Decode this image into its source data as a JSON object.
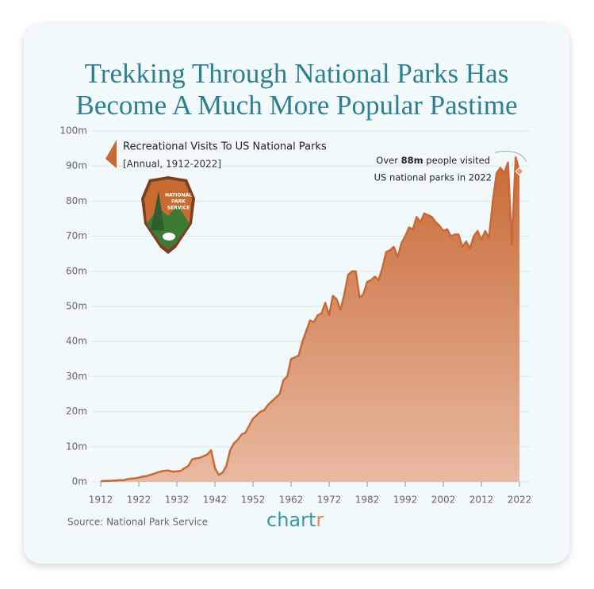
{
  "chart_data": {
    "type": "area",
    "title": [
      "Trekking Through National Parks Has",
      "Become A Much More Popular Pastime"
    ],
    "legend": {
      "name": "Recreational Visits To US National Parks",
      "note": "[Annual, 1912-2022]"
    },
    "badge": [
      "NATIONAL",
      "PARK",
      "SERVICE"
    ],
    "annotation": {
      "line1": [
        "Over",
        "88m",
        "people visited"
      ],
      "line2": "US national parks in 2022"
    },
    "source": "Source: National Park Service",
    "logo": [
      "chart",
      "r"
    ],
    "color": "#c86a35",
    "x": [
      1912,
      1913,
      1914,
      1915,
      1916,
      1917,
      1918,
      1919,
      1920,
      1921,
      1922,
      1923,
      1924,
      1925,
      1926,
      1927,
      1928,
      1929,
      1930,
      1931,
      1932,
      1933,
      1934,
      1935,
      1936,
      1937,
      1938,
      1939,
      1940,
      1941,
      1942,
      1943,
      1944,
      1945,
      1946,
      1947,
      1948,
      1949,
      1950,
      1951,
      1952,
      1953,
      1954,
      1955,
      1956,
      1957,
      1958,
      1959,
      1960,
      1961,
      1962,
      1963,
      1964,
      1965,
      1966,
      1967,
      1968,
      1969,
      1970,
      1971,
      1972,
      1973,
      1974,
      1975,
      1976,
      1977,
      1978,
      1979,
      1980,
      1981,
      1982,
      1983,
      1984,
      1985,
      1986,
      1987,
      1988,
      1989,
      1990,
      1991,
      1992,
      1993,
      1994,
      1995,
      1996,
      1997,
      1998,
      1999,
      2000,
      2001,
      2002,
      2003,
      2004,
      2005,
      2006,
      2007,
      2008,
      2009,
      2010,
      2011,
      2012,
      2013,
      2014,
      2015,
      2016,
      2017,
      2018,
      2019,
      2020,
      2021,
      2022
    ],
    "values": [
      0.2,
      0.25,
      0.24,
      0.33,
      0.36,
      0.49,
      0.45,
      0.76,
      0.92,
      1.0,
      1.2,
      1.5,
      1.6,
      2.0,
      2.3,
      2.7,
      3.0,
      3.2,
      3.2,
      2.9,
      3.0,
      3.1,
      3.9,
      4.5,
      6.4,
      6.7,
      6.8,
      7.3,
      7.8,
      9.0,
      4.0,
      2.0,
      2.6,
      4.5,
      9.0,
      11.0,
      12.0,
      13.5,
      14.0,
      16.0,
      18.0,
      19.0,
      20.0,
      20.5,
      22.0,
      23.0,
      24.0,
      25.0,
      29.0,
      30.0,
      35.0,
      35.5,
      36.0,
      40.0,
      43.0,
      46.0,
      45.5,
      47.5,
      48.0,
      51.0,
      47.5,
      53.0,
      52.0,
      49.0,
      53.5,
      59.0,
      60.0,
      60.0,
      52.5,
      53.5,
      57.0,
      57.5,
      58.5,
      57.5,
      61.0,
      65.5,
      66.0,
      67.0,
      64.0,
      68.0,
      70.0,
      72.5,
      72.0,
      75.5,
      74.0,
      76.5,
      76.0,
      75.5,
      74.0,
      73.0,
      71.5,
      72.0,
      70.0,
      70.5,
      70.5,
      67.0,
      68.5,
      66.5,
      70.0,
      71.5,
      69.0,
      71.5,
      69.5,
      80.0,
      88.0,
      89.5,
      88.0,
      91.0,
      67.5,
      92.5,
      88.5
    ],
    "xlim": [
      1912,
      2022
    ],
    "xticks": [
      1912,
      1922,
      1932,
      1942,
      1952,
      1962,
      1972,
      1982,
      1992,
      2002,
      2012,
      2022
    ],
    "ylim": [
      0,
      100
    ],
    "yticks": [
      {
        "value": 0,
        "label": "0m"
      },
      {
        "value": 10,
        "label": "10m"
      },
      {
        "value": 20,
        "label": "20m"
      },
      {
        "value": 30,
        "label": "30m"
      },
      {
        "value": 40,
        "label": "40m"
      },
      {
        "value": 50,
        "label": "50m"
      },
      {
        "value": 60,
        "label": "60m"
      },
      {
        "value": 70,
        "label": "70m"
      },
      {
        "value": 80,
        "label": "80m"
      },
      {
        "value": 90,
        "label": "90m"
      },
      {
        "value": 100,
        "label": "100m"
      }
    ],
    "grid": true
  }
}
